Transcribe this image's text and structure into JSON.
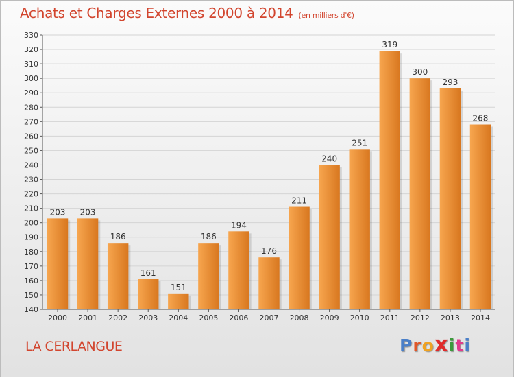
{
  "header": {
    "title": "Achats et Charges Externes 2000 à 2014",
    "unit": "(en milliers d'€)"
  },
  "footer": {
    "commune": "LA CERLANGUE",
    "logo_letters": [
      "P",
      "r",
      "o",
      "x",
      "i",
      "t",
      "i"
    ],
    "logo_colors": [
      "#4a7fc8",
      "#e0572a",
      "#f0a322",
      "#e02b2b",
      "#3c9a3c",
      "#e23a8c",
      "#4a7fc8"
    ]
  },
  "colors": {
    "title": "#d2452e",
    "bar_light": "#f7a64f",
    "bar_dark": "#d8771f",
    "grid": "#d4d4d4"
  },
  "chart_data": {
    "type": "bar",
    "categories": [
      "2000",
      "2001",
      "2002",
      "2003",
      "2004",
      "2005",
      "2006",
      "2007",
      "2008",
      "2009",
      "2010",
      "2011",
      "2012",
      "2013",
      "2014"
    ],
    "values": [
      203,
      203,
      186,
      161,
      151,
      186,
      194,
      176,
      211,
      240,
      251,
      319,
      300,
      293,
      268
    ],
    "title": "Achats et Charges Externes 2000 à 2014",
    "ylim": [
      140,
      330
    ],
    "yticks": [
      140,
      150,
      160,
      170,
      180,
      190,
      200,
      210,
      220,
      230,
      240,
      250,
      260,
      270,
      280,
      290,
      300,
      310,
      320,
      330
    ],
    "grid": true,
    "data_labels": true
  }
}
